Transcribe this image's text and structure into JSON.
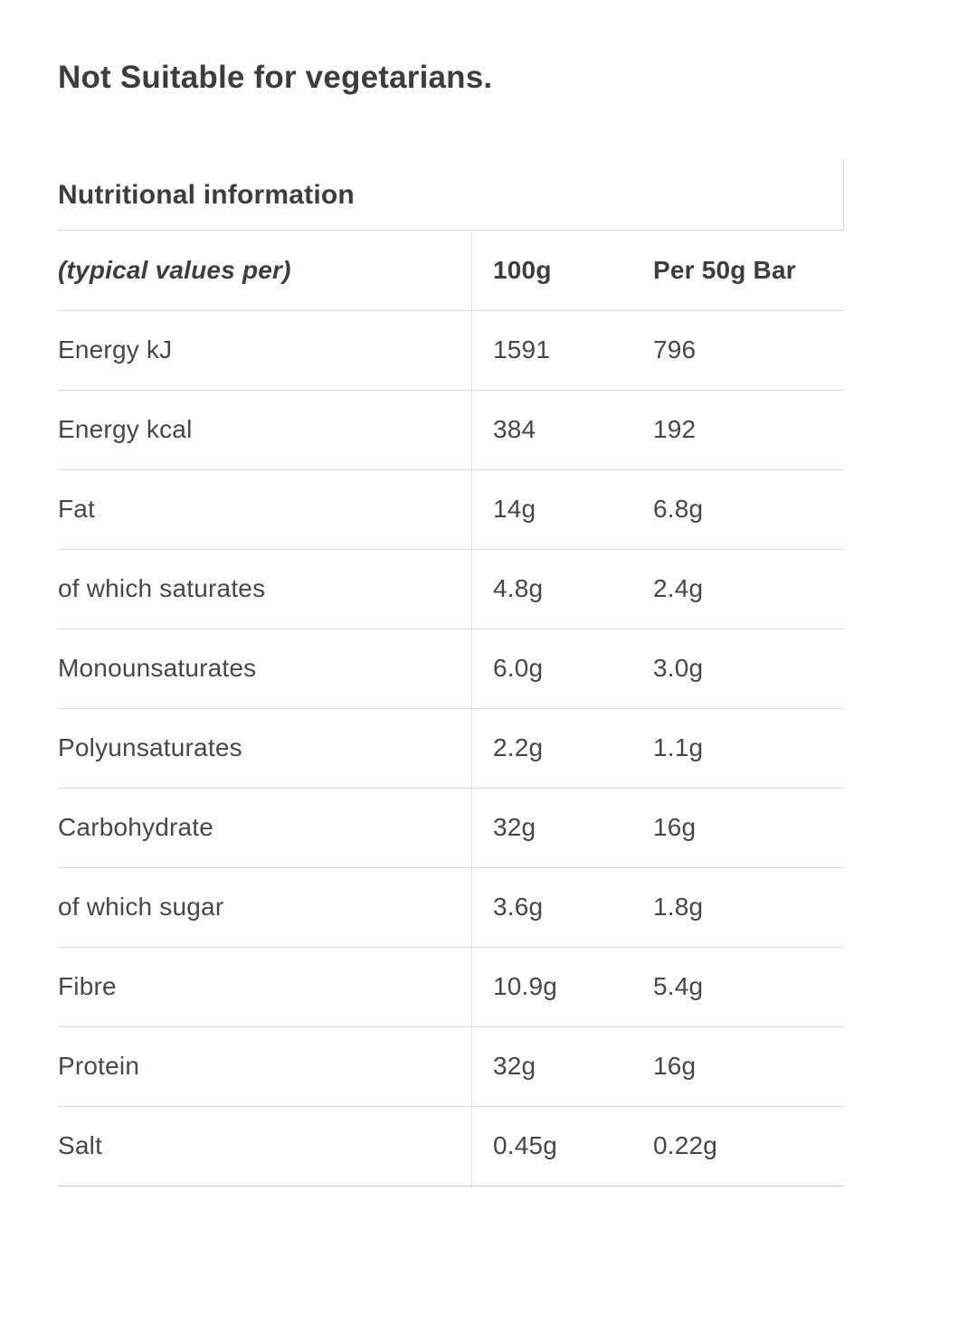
{
  "suitability_note": "Not Suitable for vegetarians.",
  "nutrition": {
    "title": "Nutritional information",
    "columns": {
      "label": "(typical values per)",
      "per_100g": "100g",
      "per_50g_bar": "Per 50g Bar"
    },
    "rows": [
      {
        "label": "Energy kJ",
        "per_100g": "1591",
        "per_50g_bar": "796"
      },
      {
        "label": "Energy kcal",
        "per_100g": "384",
        "per_50g_bar": "192"
      },
      {
        "label": "Fat",
        "per_100g": "14g",
        "per_50g_bar": "6.8g"
      },
      {
        "label": "of which saturates",
        "per_100g": "4.8g",
        "per_50g_bar": "2.4g"
      },
      {
        "label": "Monounsaturates",
        "per_100g": "6.0g",
        "per_50g_bar": "3.0g"
      },
      {
        "label": "Polyunsaturates",
        "per_100g": "2.2g",
        "per_50g_bar": "1.1g"
      },
      {
        "label": "Carbohydrate",
        "per_100g": "32g",
        "per_50g_bar": "16g"
      },
      {
        "label": "of which sugar",
        "per_100g": "3.6g",
        "per_50g_bar": "1.8g"
      },
      {
        "label": "Fibre",
        "per_100g": "10.9g",
        "per_50g_bar": "5.4g"
      },
      {
        "label": "Protein",
        "per_100g": "32g",
        "per_50g_bar": "16g"
      },
      {
        "label": "Salt",
        "per_100g": "0.45g",
        "per_50g_bar": "0.22g"
      }
    ]
  },
  "colors": {
    "heading_text": "#3d3d3d",
    "body_text": "#474747",
    "row_border": "#dcdcdc",
    "column_divider": "#e0e0e0",
    "title_cell_border": "#d9d9d9",
    "table_bottom_border": "#c9c9c9",
    "background": "#ffffff"
  }
}
